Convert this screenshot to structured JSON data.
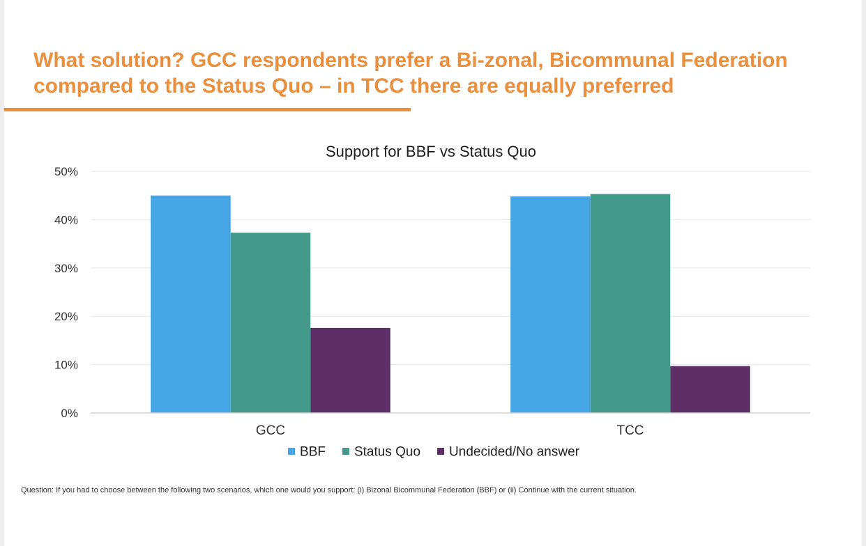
{
  "slide": {
    "headline_line1": "What solution? GCC respondents prefer a Bi-zonal, Bicommunal Federation",
    "headline_line2": "compared to the Status Quo – in TCC there are equally preferred",
    "accent_color": "#ea8f3d",
    "footnote": "Question: If you had to choose between the following two scenarios, which one would you support: (i) Bizonal Bicommunal Federation (BBF) or (ii) Continue with the current situation."
  },
  "chart_data": {
    "type": "bar",
    "title": "Support for BBF vs Status Quo",
    "categories": [
      "GCC",
      "TCC"
    ],
    "series": [
      {
        "name": "BBF",
        "values": [
          45,
          44.8
        ],
        "color": "#46a5e5"
      },
      {
        "name": "Status Quo",
        "values": [
          37.3,
          45.3
        ],
        "color": "#43998a"
      },
      {
        "name": "Undecided/No answer",
        "values": [
          17.6,
          9.7
        ],
        "color": "#5e2f66"
      }
    ],
    "ylim": [
      0,
      50
    ],
    "yticks": [
      "0%",
      "10%",
      "20%",
      "30%",
      "40%",
      "50%"
    ],
    "ytick_values": [
      0,
      10,
      20,
      30,
      40,
      50
    ],
    "xlabel": "",
    "ylabel": "",
    "grid": true,
    "legend_position": "bottom"
  }
}
